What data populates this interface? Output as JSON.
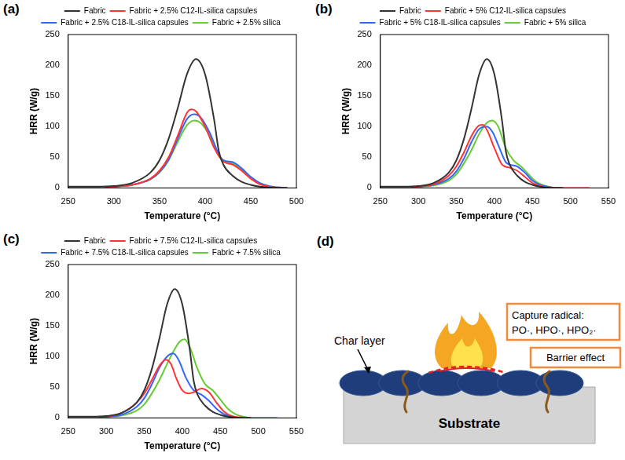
{
  "chart_data": [
    {
      "type": "line",
      "title": "(a)",
      "x_label": "Temperature (°C)",
      "y_label": "HRR (W/g)",
      "xlim": [
        250,
        500
      ],
      "xticks": [
        250,
        300,
        350,
        400,
        450,
        500
      ],
      "ylim": [
        0,
        250
      ],
      "yticks": [
        0,
        50,
        100,
        150,
        200,
        250
      ],
      "grid": false,
      "legend": "top",
      "series": [
        {
          "name": "Fabric",
          "color": "#333333",
          "x": [
            250,
            280,
            300,
            320,
            340,
            350,
            360,
            370,
            380,
            390,
            400,
            410,
            415,
            420,
            430,
            440,
            450,
            460,
            480,
            490
          ],
          "values": [
            2,
            2,
            3,
            8,
            25,
            45,
            80,
            130,
            185,
            210,
            185,
            110,
            60,
            38,
            20,
            10,
            5,
            2,
            0,
            0
          ]
        },
        {
          "name": "Fabric + 2.5% C12-IL-silica capsules",
          "color": "#ff3333",
          "x": [
            290,
            300,
            320,
            340,
            350,
            360,
            370,
            380,
            385,
            390,
            400,
            410,
            420,
            430,
            440,
            450,
            460,
            470,
            480,
            490
          ],
          "values": [
            0,
            2,
            5,
            15,
            28,
            50,
            85,
            122,
            128,
            125,
            100,
            65,
            43,
            38,
            28,
            15,
            6,
            2,
            0,
            0
          ]
        },
        {
          "name": "Fabric + 2.5% C18-IL-silica capsules",
          "color": "#3366ff",
          "x": [
            290,
            300,
            320,
            340,
            350,
            360,
            370,
            380,
            388,
            395,
            405,
            415,
            420,
            430,
            440,
            450,
            460,
            470,
            480,
            490
          ],
          "values": [
            0,
            2,
            5,
            14,
            26,
            46,
            80,
            112,
            120,
            115,
            90,
            55,
            45,
            42,
            32,
            18,
            8,
            3,
            1,
            0
          ]
        },
        {
          "name": "Fabric + 2.5% silica",
          "color": "#66cc33",
          "x": [
            290,
            300,
            320,
            340,
            350,
            360,
            370,
            380,
            388,
            395,
            405,
            415,
            420,
            430,
            440,
            450,
            460,
            470,
            480,
            490
          ],
          "values": [
            0,
            2,
            5,
            14,
            25,
            45,
            75,
            102,
            110,
            106,
            85,
            52,
            45,
            40,
            30,
            16,
            7,
            2,
            0,
            0
          ]
        }
      ]
    },
    {
      "type": "line",
      "title": "(b)",
      "x_label": "Temperature (°C)",
      "y_label": "HRR (W/g)",
      "xlim": [
        250,
        550
      ],
      "xticks": [
        250,
        300,
        350,
        400,
        450,
        500,
        550
      ],
      "ylim": [
        0,
        250
      ],
      "yticks": [
        0,
        50,
        100,
        150,
        200,
        250
      ],
      "grid": false,
      "legend": "top",
      "series": [
        {
          "name": "Fabric",
          "color": "#333333",
          "x": [
            250,
            280,
            300,
            320,
            340,
            350,
            360,
            370,
            380,
            390,
            400,
            410,
            415,
            420,
            430,
            440,
            450,
            460,
            480,
            490
          ],
          "values": [
            2,
            2,
            3,
            8,
            25,
            45,
            80,
            130,
            185,
            210,
            185,
            110,
            60,
            38,
            20,
            10,
            5,
            2,
            0,
            0
          ]
        },
        {
          "name": "Fabric + 5% C12-IL-silica capsules",
          "color": "#ff3333",
          "x": [
            290,
            300,
            320,
            340,
            350,
            360,
            370,
            380,
            385,
            390,
            400,
            410,
            420,
            430,
            440,
            450,
            460,
            470,
            480,
            525
          ],
          "values": [
            0,
            2,
            6,
            20,
            35,
            58,
            85,
            102,
            103,
            95,
            65,
            38,
            33,
            28,
            18,
            8,
            3,
            1,
            0,
            0
          ]
        },
        {
          "name": "Fabric + 5% C18-IL-silica capsules",
          "color": "#3366ff",
          "x": [
            290,
            300,
            320,
            340,
            350,
            360,
            370,
            380,
            390,
            398,
            405,
            415,
            420,
            430,
            440,
            450,
            460,
            470,
            480,
            490
          ],
          "values": [
            0,
            2,
            5,
            15,
            27,
            48,
            75,
            96,
            100,
            90,
            70,
            42,
            38,
            35,
            25,
            12,
            5,
            2,
            0,
            0
          ]
        },
        {
          "name": "Fabric + 5% silica",
          "color": "#66cc33",
          "x": [
            290,
            300,
            320,
            340,
            350,
            360,
            370,
            380,
            390,
            397,
            405,
            415,
            425,
            435,
            445,
            455,
            465,
            475,
            490
          ],
          "values": [
            0,
            2,
            4,
            12,
            22,
            40,
            62,
            88,
            106,
            110,
            100,
            65,
            45,
            35,
            22,
            10,
            4,
            1,
            0
          ]
        }
      ]
    },
    {
      "type": "line",
      "title": "(c)",
      "x_label": "Temperature (°C)",
      "y_label": "HRR (W/g)",
      "xlim": [
        250,
        550
      ],
      "xticks": [
        250,
        300,
        350,
        400,
        450,
        500,
        550
      ],
      "ylim": [
        0,
        250
      ],
      "yticks": [
        0,
        50,
        100,
        150,
        200,
        250
      ],
      "grid": false,
      "legend": "top",
      "series": [
        {
          "name": "Fabric",
          "color": "#333333",
          "x": [
            250,
            280,
            300,
            320,
            340,
            350,
            360,
            370,
            380,
            390,
            400,
            410,
            415,
            420,
            430,
            440,
            450,
            460,
            480,
            490
          ],
          "values": [
            2,
            2,
            3,
            8,
            25,
            45,
            80,
            130,
            185,
            210,
            185,
            110,
            60,
            38,
            20,
            10,
            5,
            2,
            0,
            0
          ]
        },
        {
          "name": "Fabric + 7.5% C12-IL-silica capsules",
          "color": "#ff3333",
          "x": [
            290,
            300,
            320,
            340,
            350,
            360,
            370,
            378,
            385,
            392,
            400,
            408,
            415,
            425,
            435,
            445,
            455,
            465,
            475,
            490
          ],
          "values": [
            0,
            2,
            8,
            25,
            40,
            62,
            85,
            95,
            88,
            65,
            45,
            40,
            42,
            48,
            42,
            25,
            10,
            3,
            1,
            0
          ]
        },
        {
          "name": "Fabric + 7.5% C18-IL-silica capsules",
          "color": "#3366ff",
          "x": [
            290,
            300,
            320,
            340,
            350,
            360,
            370,
            380,
            388,
            395,
            405,
            415,
            425,
            435,
            445,
            455,
            465,
            480,
            525
          ],
          "values": [
            0,
            2,
            5,
            18,
            32,
            55,
            82,
            100,
            105,
            95,
            65,
            45,
            38,
            28,
            15,
            6,
            2,
            0,
            0
          ]
        },
        {
          "name": "Fabric + 7.5% silica",
          "color": "#66cc33",
          "x": [
            290,
            300,
            320,
            340,
            350,
            360,
            370,
            380,
            390,
            397,
            403,
            410,
            420,
            430,
            440,
            450,
            460,
            470,
            480,
            490
          ],
          "values": [
            0,
            2,
            4,
            12,
            22,
            40,
            62,
            88,
            112,
            125,
            128,
            115,
            80,
            55,
            45,
            30,
            15,
            6,
            2,
            0
          ]
        }
      ]
    }
  ],
  "diagram": {
    "title": "(d)",
    "char_layer": "Char layer",
    "radical_box": [
      "Capture radical:",
      "PO·, HPO·, HPO₂·"
    ],
    "barrier_box": "Barrier effect",
    "substrate": "Substrate"
  }
}
